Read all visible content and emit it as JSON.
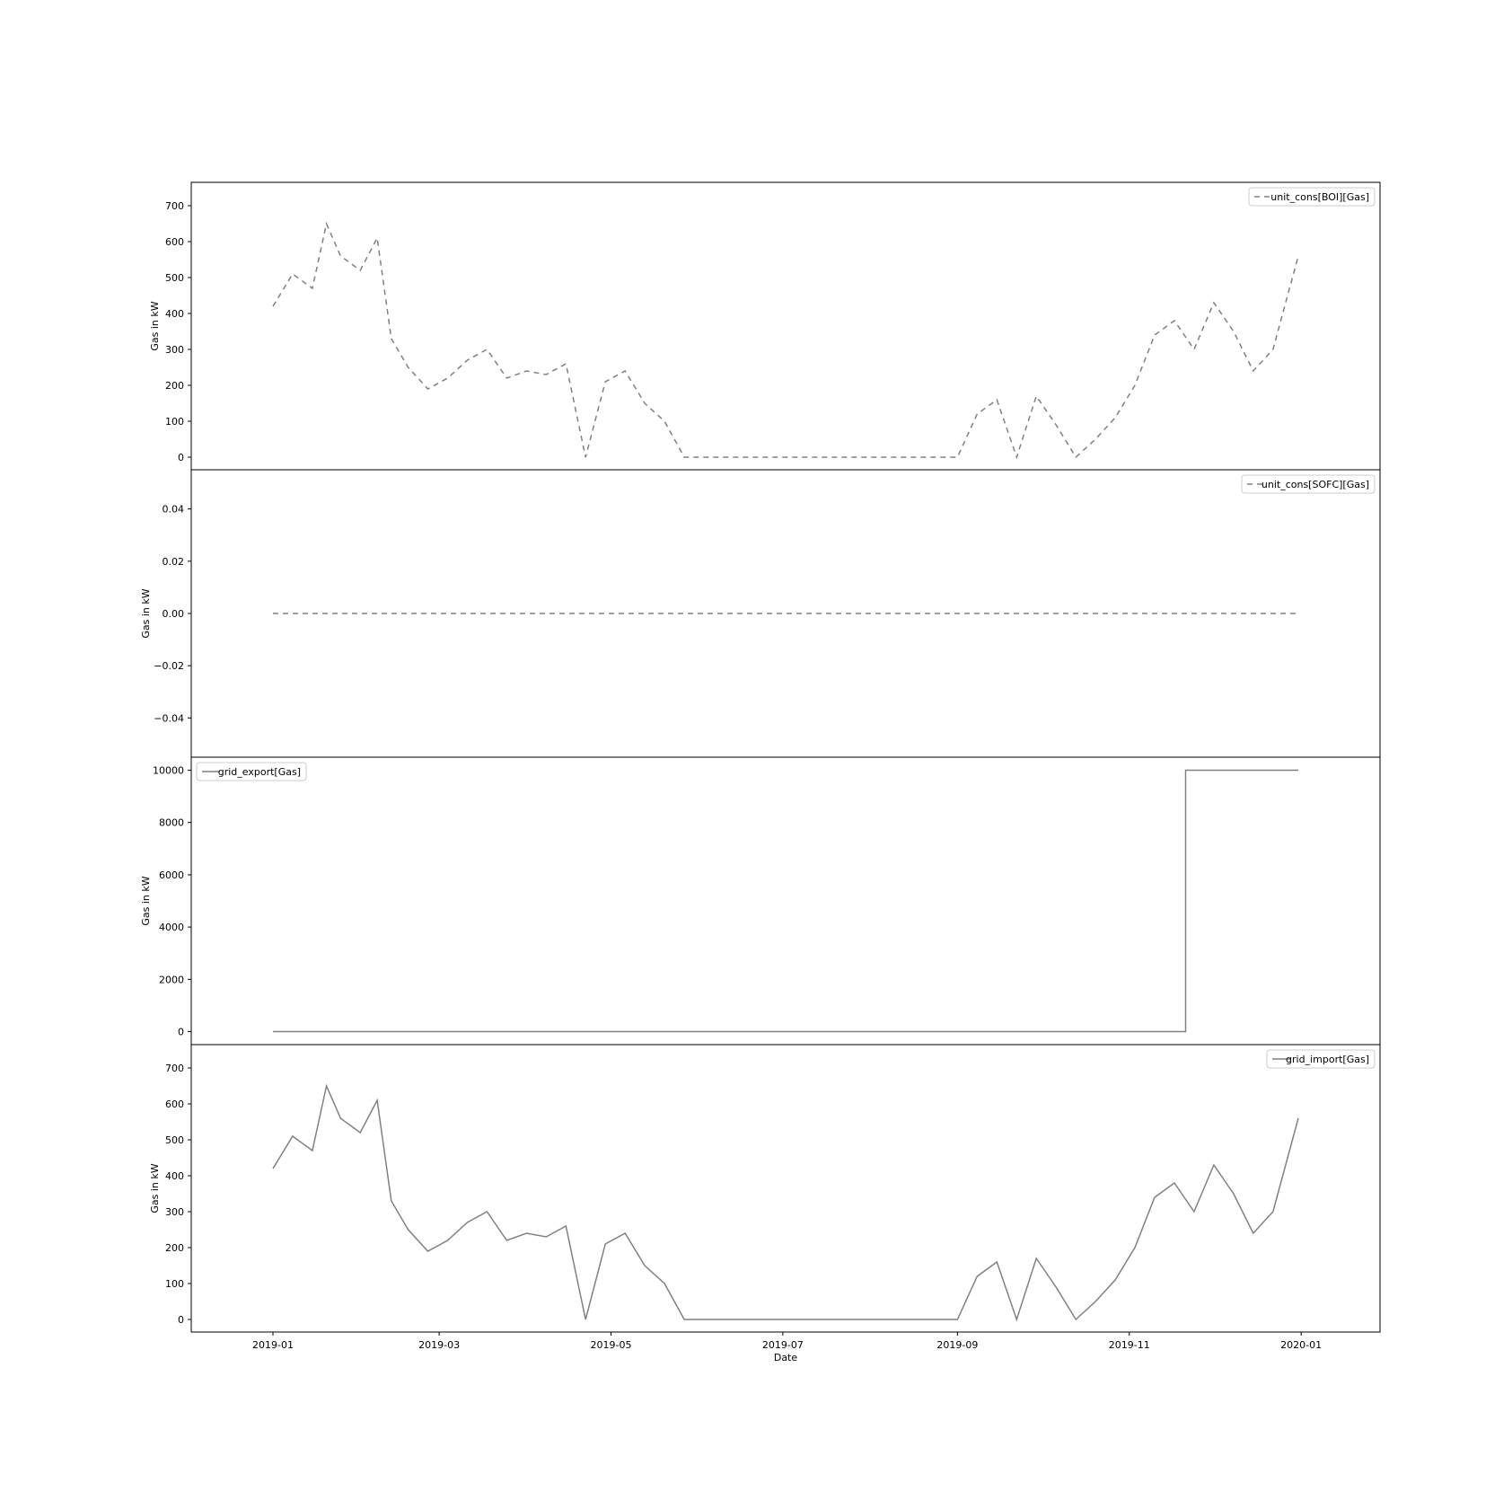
{
  "colors": {
    "series": "#808080",
    "frame": "#000000",
    "legend_border": "#cccccc"
  },
  "chart_data": [
    {
      "type": "line",
      "ylabel": "Gas in kW",
      "legend_location": "top-right",
      "yticks": [
        "0",
        "100",
        "200",
        "300",
        "400",
        "500",
        "600",
        "700"
      ],
      "ylim": [
        -35,
        765
      ],
      "xlim": [
        "2018-12-03",
        "2020-01-29"
      ],
      "series": [
        {
          "name": "unit_cons[BOI][Gas]",
          "style": "dashed",
          "x": [
            "2019-01-01",
            "2019-01-08",
            "2019-01-15",
            "2019-01-20",
            "2019-01-25",
            "2019-02-01",
            "2019-02-07",
            "2019-02-12",
            "2019-02-18",
            "2019-02-25",
            "2019-03-04",
            "2019-03-11",
            "2019-03-18",
            "2019-03-25",
            "2019-04-01",
            "2019-04-08",
            "2019-04-15",
            "2019-04-22",
            "2019-04-29",
            "2019-05-06",
            "2019-05-13",
            "2019-05-20",
            "2019-05-27",
            "2019-06-01",
            "2019-06-15",
            "2019-07-01",
            "2019-07-15",
            "2019-08-01",
            "2019-08-15",
            "2019-09-01",
            "2019-09-08",
            "2019-09-15",
            "2019-09-22",
            "2019-09-29",
            "2019-10-06",
            "2019-10-13",
            "2019-10-20",
            "2019-10-27",
            "2019-11-03",
            "2019-11-10",
            "2019-11-17",
            "2019-11-24",
            "2019-12-01",
            "2019-12-08",
            "2019-12-15",
            "2019-12-22",
            "2019-12-31"
          ],
          "y": [
            420,
            510,
            470,
            650,
            560,
            520,
            610,
            330,
            250,
            190,
            220,
            270,
            300,
            220,
            240,
            230,
            260,
            0,
            210,
            240,
            150,
            100,
            0,
            0,
            0,
            0,
            0,
            0,
            0,
            0,
            120,
            160,
            0,
            170,
            90,
            0,
            50,
            110,
            200,
            340,
            380,
            300,
            430,
            350,
            240,
            300,
            560
          ]
        }
      ]
    },
    {
      "type": "line",
      "ylabel": "Gas in kW",
      "legend_location": "top-right",
      "yticks": [
        "−0.04",
        "−0.02",
        "0.00",
        "0.02",
        "0.04"
      ],
      "ylim": [
        -0.055,
        0.055
      ],
      "xlim": [
        "2018-12-03",
        "2020-01-29"
      ],
      "series": [
        {
          "name": "unit_cons[SOFC][Gas]",
          "style": "dashed",
          "x": [
            "2019-01-01",
            "2019-12-31"
          ],
          "y": [
            0,
            0
          ]
        }
      ]
    },
    {
      "type": "line",
      "ylabel": "Gas in kW",
      "legend_location": "top-left",
      "yticks": [
        "0",
        "2000",
        "4000",
        "6000",
        "8000",
        "10000"
      ],
      "ylim": [
        -500,
        10500
      ],
      "xlim": [
        "2018-12-03",
        "2020-01-29"
      ],
      "series": [
        {
          "name": "grid_export[Gas]",
          "style": "solid",
          "x": [
            "2019-01-01",
            "2019-11-21",
            "2019-11-21",
            "2019-12-31"
          ],
          "y": [
            0,
            0,
            10000,
            10000
          ]
        }
      ]
    },
    {
      "type": "line",
      "ylabel": "Gas in kW",
      "xlabel": "Date",
      "legend_location": "top-right",
      "yticks": [
        "0",
        "100",
        "200",
        "300",
        "400",
        "500",
        "600",
        "700"
      ],
      "ylim": [
        -35,
        765
      ],
      "xlim": [
        "2018-12-03",
        "2020-01-29"
      ],
      "xticks": [
        "2019-01",
        "2019-03",
        "2019-05",
        "2019-07",
        "2019-09",
        "2019-11",
        "2020-01"
      ],
      "series": [
        {
          "name": "grid_import[Gas]",
          "style": "solid",
          "x": [
            "2019-01-01",
            "2019-01-08",
            "2019-01-15",
            "2019-01-20",
            "2019-01-25",
            "2019-02-01",
            "2019-02-07",
            "2019-02-12",
            "2019-02-18",
            "2019-02-25",
            "2019-03-04",
            "2019-03-11",
            "2019-03-18",
            "2019-03-25",
            "2019-04-01",
            "2019-04-08",
            "2019-04-15",
            "2019-04-22",
            "2019-04-29",
            "2019-05-06",
            "2019-05-13",
            "2019-05-20",
            "2019-05-27",
            "2019-06-01",
            "2019-06-15",
            "2019-07-01",
            "2019-07-15",
            "2019-08-01",
            "2019-08-15",
            "2019-09-01",
            "2019-09-08",
            "2019-09-15",
            "2019-09-22",
            "2019-09-29",
            "2019-10-06",
            "2019-10-13",
            "2019-10-20",
            "2019-10-27",
            "2019-11-03",
            "2019-11-10",
            "2019-11-17",
            "2019-11-24",
            "2019-12-01",
            "2019-12-08",
            "2019-12-15",
            "2019-12-22",
            "2019-12-31"
          ],
          "y": [
            420,
            510,
            470,
            650,
            560,
            520,
            610,
            330,
            250,
            190,
            220,
            270,
            300,
            220,
            240,
            230,
            260,
            0,
            210,
            240,
            150,
            100,
            0,
            0,
            0,
            0,
            0,
            0,
            0,
            0,
            120,
            160,
            0,
            170,
            90,
            0,
            50,
            110,
            200,
            340,
            380,
            300,
            430,
            350,
            240,
            300,
            560
          ]
        }
      ]
    }
  ]
}
